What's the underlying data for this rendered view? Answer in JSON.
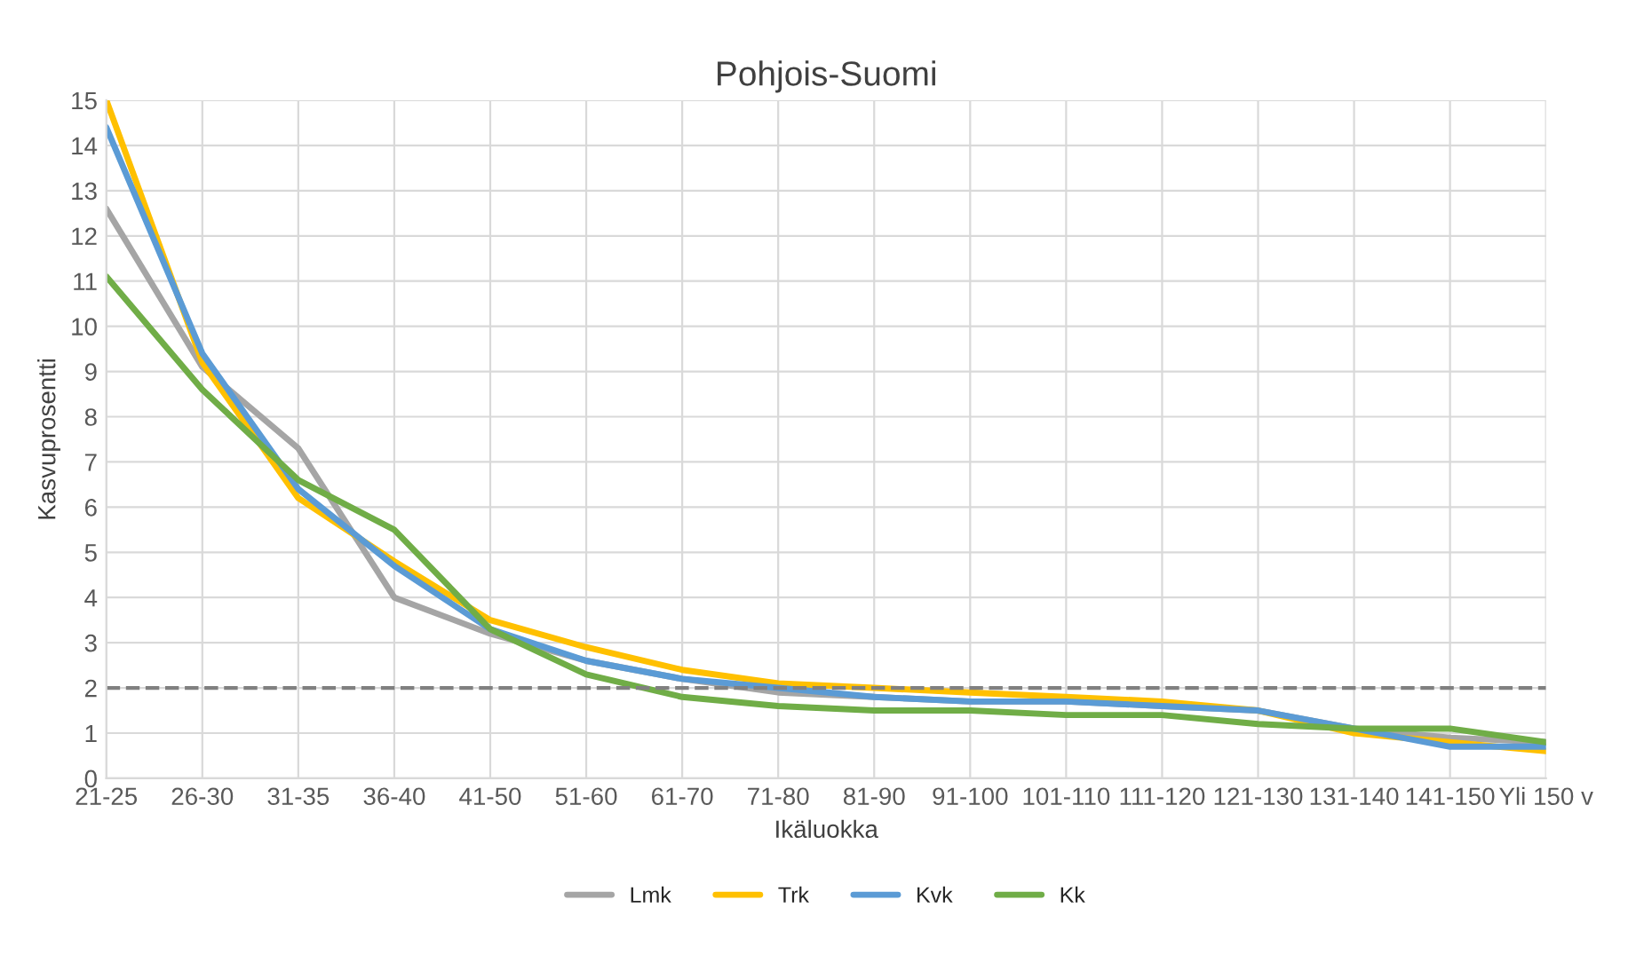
{
  "chart_data": {
    "type": "line",
    "title": "Pohjois-Suomi",
    "xlabel": "Ikäluokka",
    "ylabel": "Kasvuprosentti",
    "categories": [
      "21-25",
      "26-30",
      "31-35",
      "36-40",
      "41-50",
      "51-60",
      "61-70",
      "71-80",
      "81-90",
      "91-100",
      "101-110",
      "111-120",
      "121-130",
      "131-140",
      "141-150",
      "Yli 150 v"
    ],
    "series": [
      {
        "name": "Lmk",
        "color": "#a5a5a5",
        "values": [
          12.6,
          9.1,
          7.3,
          4.0,
          3.2,
          2.6,
          2.2,
          1.9,
          1.8,
          1.7,
          1.7,
          1.6,
          1.5,
          1.1,
          0.9,
          0.8
        ]
      },
      {
        "name": "Trk",
        "color": "#ffc000",
        "values": [
          15.0,
          9.2,
          6.2,
          4.8,
          3.5,
          2.9,
          2.4,
          2.1,
          2.0,
          1.9,
          1.8,
          1.7,
          1.5,
          1.0,
          0.8,
          0.6
        ]
      },
      {
        "name": "Kvk",
        "color": "#5b9bd5",
        "values": [
          14.4,
          9.4,
          6.4,
          4.7,
          3.3,
          2.6,
          2.2,
          2.0,
          1.8,
          1.7,
          1.7,
          1.6,
          1.5,
          1.1,
          0.7,
          0.7
        ]
      },
      {
        "name": "Kk",
        "color": "#70ad47",
        "values": [
          11.1,
          8.6,
          6.6,
          5.5,
          3.3,
          2.3,
          1.8,
          1.6,
          1.5,
          1.5,
          1.4,
          1.4,
          1.2,
          1.1,
          1.1,
          0.8
        ]
      }
    ],
    "ylim": [
      0,
      15
    ],
    "yticks": [
      0,
      1,
      2,
      3,
      4,
      5,
      6,
      7,
      8,
      9,
      10,
      11,
      12,
      13,
      14,
      15
    ],
    "ref_lines": [
      {
        "axis": "y",
        "value": 2,
        "color": "#808080",
        "line_style": "dashed"
      }
    ],
    "grid": true,
    "legend": "bottom",
    "marker": "none",
    "line_style": "solid"
  }
}
